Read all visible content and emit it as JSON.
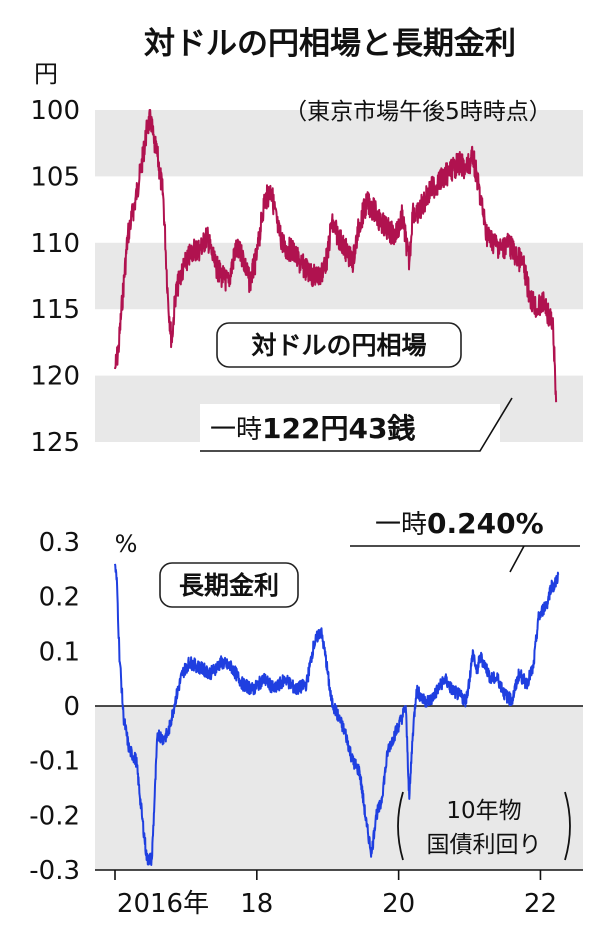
{
  "title": "対ドルの円相場と長期金利",
  "chart_data": [
    {
      "type": "line",
      "title": "",
      "yunit": "円",
      "note": "（東京市場午後5時時点）",
      "series_label": "対ドルの円相場",
      "ylim": [
        125,
        100
      ],
      "yticks": [
        "100",
        "105",
        "110",
        "115",
        "120",
        "125"
      ],
      "y_inverted": true,
      "xlim": [
        2016.0,
        2022.6
      ],
      "color": "#b0124f",
      "annotation": {
        "prefix": "一時",
        "value": "122円43銭"
      },
      "series": [
        {
          "x": [
            2016.0,
            2016.05,
            2016.1,
            2016.18,
            2016.28,
            2016.38,
            2016.45,
            2016.5,
            2016.55,
            2016.6,
            2016.68,
            2016.75,
            2016.8,
            2016.85,
            2016.92,
            2017.0,
            2017.1,
            2017.2,
            2017.3,
            2017.4,
            2017.5,
            2017.6,
            2017.7,
            2017.8,
            2017.9,
            2018.0,
            2018.1,
            2018.2,
            2018.3,
            2018.4,
            2018.5,
            2018.6,
            2018.7,
            2018.8,
            2018.9,
            2019.0,
            2019.05,
            2019.15,
            2019.25,
            2019.35,
            2019.45,
            2019.55,
            2019.65,
            2019.75,
            2019.85,
            2019.95,
            2020.05,
            2020.15,
            2020.2,
            2020.25,
            2020.35,
            2020.45,
            2020.55,
            2020.65,
            2020.75,
            2020.85,
            2020.95,
            2021.05,
            2021.15,
            2021.25,
            2021.35,
            2021.45,
            2021.55,
            2021.65,
            2021.75,
            2021.85,
            2021.95,
            2022.05,
            2022.12,
            2022.18,
            2022.22
          ],
          "values": [
            119.5,
            118.0,
            114.5,
            109.5,
            107.0,
            104.0,
            101.5,
            100.5,
            102.5,
            103.5,
            106.5,
            114.5,
            117.5,
            114.0,
            112.5,
            111.5,
            110.5,
            110.5,
            109.5,
            111.5,
            112.5,
            113.0,
            110.5,
            111.0,
            113.0,
            111.0,
            107.0,
            106.0,
            109.0,
            110.5,
            110.5,
            111.5,
            112.0,
            112.5,
            112.5,
            111.0,
            108.5,
            109.5,
            110.5,
            111.5,
            108.5,
            107.0,
            107.5,
            108.5,
            109.0,
            109.5,
            108.0,
            111.5,
            107.5,
            108.0,
            107.0,
            106.0,
            105.5,
            105.0,
            104.5,
            104.0,
            104.5,
            103.5,
            106.5,
            109.5,
            110.0,
            110.5,
            110.0,
            111.0,
            111.5,
            114.0,
            115.0,
            114.5,
            115.5,
            116.5,
            122.0
          ]
        }
      ]
    },
    {
      "type": "line",
      "title": "",
      "yunit": "%",
      "series_label": "長期金利",
      "note_lines": [
        "10年物",
        "国債利回り"
      ],
      "ylim": [
        -0.3,
        0.3
      ],
      "yticks": [
        "-0.3",
        "-0.2",
        "-0.1",
        "0",
        "0.1",
        "0.2",
        "0.3"
      ],
      "xlim": [
        2016.0,
        2022.6
      ],
      "xticks": [
        "2016年",
        "18",
        "20",
        "22"
      ],
      "xtick_values": [
        2016,
        2018,
        2020,
        2022
      ],
      "color": "#1f3fe0",
      "annotation": {
        "prefix": "一時",
        "value": "0.240%"
      },
      "series": [
        {
          "x": [
            2016.0,
            2016.03,
            2016.06,
            2016.12,
            2016.2,
            2016.3,
            2016.38,
            2016.45,
            2016.52,
            2016.6,
            2016.68,
            2016.75,
            2016.85,
            2016.95,
            2017.05,
            2017.2,
            2017.35,
            2017.5,
            2017.65,
            2017.8,
            2017.95,
            2018.1,
            2018.25,
            2018.4,
            2018.55,
            2018.7,
            2018.8,
            2018.9,
            2018.97,
            2019.05,
            2019.15,
            2019.25,
            2019.35,
            2019.45,
            2019.55,
            2019.62,
            2019.68,
            2019.75,
            2019.85,
            2019.95,
            2020.05,
            2020.1,
            2020.15,
            2020.2,
            2020.25,
            2020.35,
            2020.45,
            2020.55,
            2020.65,
            2020.75,
            2020.85,
            2020.95,
            2021.0,
            2021.05,
            2021.1,
            2021.15,
            2021.2,
            2021.3,
            2021.4,
            2021.5,
            2021.6,
            2021.7,
            2021.8,
            2021.9,
            2021.97,
            2022.05,
            2022.1,
            2022.15,
            2022.2,
            2022.25
          ],
          "values": [
            0.26,
            0.22,
            0.1,
            -0.02,
            -0.08,
            -0.1,
            -0.2,
            -0.28,
            -0.28,
            -0.05,
            -0.06,
            -0.05,
            0.01,
            0.06,
            0.08,
            0.07,
            0.06,
            0.08,
            0.07,
            0.04,
            0.03,
            0.05,
            0.03,
            0.05,
            0.03,
            0.04,
            0.11,
            0.14,
            0.09,
            0.01,
            -0.02,
            -0.05,
            -0.1,
            -0.12,
            -0.22,
            -0.27,
            -0.2,
            -0.18,
            -0.08,
            -0.05,
            -0.02,
            0.0,
            -0.17,
            -0.05,
            0.03,
            0.01,
            0.01,
            0.03,
            0.05,
            0.03,
            0.02,
            0.01,
            0.05,
            0.1,
            0.06,
            0.09,
            0.08,
            0.05,
            0.05,
            0.02,
            0.01,
            0.06,
            0.04,
            0.07,
            0.16,
            0.18,
            0.19,
            0.22,
            0.22,
            0.24
          ]
        }
      ]
    }
  ]
}
